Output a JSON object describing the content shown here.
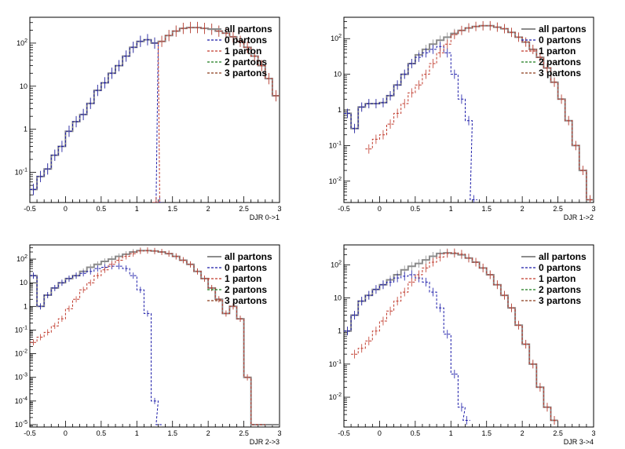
{
  "colors": {
    "all": "#8c8c8c",
    "p0": "#1a1aa8",
    "p1": "#c0392b",
    "p2": "#1a7a1a",
    "p3": "#8b3a1a"
  },
  "legend": [
    {
      "key": "all",
      "label": "all partons",
      "dashed": false
    },
    {
      "key": "p0",
      "label": "0 partons",
      "dashed": true
    },
    {
      "key": "p1",
      "label": "1 parton",
      "dashed": true
    },
    {
      "key": "p2",
      "label": "2 partons",
      "dashed": true
    },
    {
      "key": "p3",
      "label": "3 partons",
      "dashed": true
    }
  ],
  "chart_data": [
    {
      "type": "line",
      "xlabel": "DJR 0->1",
      "xlim": [
        -0.5,
        3.0
      ],
      "ylim_log10": [
        -1.7,
        2.6
      ],
      "yscale": "log",
      "xticks": [
        "-0.5",
        "0",
        "0.5",
        "1",
        "1.5",
        "2",
        "2.5",
        "3"
      ],
      "yticks": [
        {
          "exp": -1,
          "label": "10^-1"
        },
        {
          "exp": 0,
          "label": "1"
        },
        {
          "exp": 1,
          "label": "10"
        },
        {
          "exp": 2,
          "label": "10^2"
        }
      ],
      "series": [
        {
          "name": "all partons",
          "key": "all",
          "x": [
            -0.45,
            -0.35,
            -0.25,
            -0.15,
            -0.05,
            0.05,
            0.15,
            0.25,
            0.35,
            0.45,
            0.55,
            0.65,
            0.75,
            0.85,
            0.95,
            1.05,
            1.15,
            1.25,
            1.35,
            1.45,
            1.55,
            1.65,
            1.75,
            1.85,
            1.95,
            2.05,
            2.15,
            2.25,
            2.35,
            2.45,
            2.55,
            2.65,
            2.75,
            2.85,
            2.95
          ],
          "y": [
            0.04,
            0.08,
            0.12,
            0.25,
            0.4,
            0.9,
            1.5,
            2.2,
            4,
            8,
            12,
            20,
            30,
            50,
            80,
            110,
            120,
            100,
            110,
            150,
            190,
            220,
            230,
            230,
            220,
            210,
            190,
            170,
            140,
            110,
            80,
            50,
            30,
            15,
            6
          ]
        },
        {
          "name": "0 partons",
          "key": "p0",
          "x": [
            -0.45,
            -0.35,
            -0.25,
            -0.15,
            -0.05,
            0.05,
            0.15,
            0.25,
            0.35,
            0.45,
            0.55,
            0.65,
            0.75,
            0.85,
            0.95,
            1.05,
            1.15,
            1.25,
            1.32
          ],
          "y": [
            0.04,
            0.08,
            0.12,
            0.25,
            0.4,
            0.9,
            1.5,
            2.2,
            4,
            8,
            12,
            20,
            30,
            50,
            80,
            110,
            120,
            100,
            0.02
          ]
        },
        {
          "name": "1 parton",
          "key": "p1",
          "x": [
            1.27,
            1.35,
            1.45,
            1.55,
            1.65,
            1.75,
            1.85,
            1.95,
            2.05,
            2.15,
            2.25,
            2.35,
            2.45,
            2.55,
            2.65,
            2.75,
            2.85,
            2.95
          ],
          "y": [
            0.02,
            110,
            150,
            190,
            220,
            230,
            230,
            220,
            210,
            190,
            170,
            140,
            110,
            80,
            50,
            30,
            15,
            6
          ]
        }
      ]
    },
    {
      "type": "line",
      "xlabel": "DJR 1->2",
      "xlim": [
        -0.5,
        3.0
      ],
      "ylim_log10": [
        -2.6,
        2.6
      ],
      "yscale": "log",
      "xticks": [
        "-0.5",
        "0",
        "0.5",
        "1",
        "1.5",
        "2",
        "2.5",
        "3"
      ],
      "yticks": [
        {
          "exp": -2,
          "label": "10^-2"
        },
        {
          "exp": -1,
          "label": "10^-1"
        },
        {
          "exp": 0,
          "label": "1"
        },
        {
          "exp": 1,
          "label": "10"
        },
        {
          "exp": 2,
          "label": "10^2"
        }
      ],
      "series": [
        {
          "name": "all partons",
          "key": "all",
          "x": [
            -0.45,
            -0.35,
            -0.25,
            -0.15,
            -0.05,
            0.05,
            0.15,
            0.25,
            0.35,
            0.45,
            0.55,
            0.65,
            0.75,
            0.85,
            0.95,
            1.05,
            1.15,
            1.25,
            1.35,
            1.45,
            1.55,
            1.65,
            1.75,
            1.85,
            1.95,
            2.05,
            2.15,
            2.25,
            2.35,
            2.45,
            2.55,
            2.65,
            2.75,
            2.85,
            2.95
          ],
          "y": [
            0.8,
            0.3,
            1.2,
            1.5,
            1.5,
            1.6,
            2.5,
            5,
            10,
            20,
            35,
            50,
            70,
            90,
            110,
            140,
            170,
            200,
            220,
            230,
            230,
            210,
            190,
            150,
            110,
            80,
            50,
            30,
            15,
            6,
            2,
            0.5,
            0.1,
            0.02,
            0.003
          ]
        },
        {
          "name": "0 partons",
          "key": "p0",
          "x": [
            -0.45,
            -0.35,
            -0.25,
            -0.15,
            -0.05,
            0.05,
            0.15,
            0.25,
            0.35,
            0.45,
            0.55,
            0.65,
            0.75,
            0.85,
            0.95,
            1.05,
            1.15,
            1.25,
            1.32
          ],
          "y": [
            0.8,
            0.3,
            1.2,
            1.5,
            1.5,
            1.6,
            2.5,
            5,
            10,
            20,
            30,
            40,
            50,
            60,
            40,
            10,
            2,
            0.5,
            0.003
          ]
        },
        {
          "name": "1 parton",
          "key": "p1",
          "x": [
            -0.15,
            -0.05,
            0.05,
            0.15,
            0.25,
            0.35,
            0.45,
            0.55,
            0.65,
            0.75,
            0.85,
            0.95,
            1.05,
            1.15,
            1.25,
            1.35,
            1.45,
            1.55,
            1.65,
            1.75,
            1.85,
            1.95,
            2.05,
            2.15,
            2.25,
            2.35,
            2.45,
            2.55,
            2.65,
            2.75,
            2.85,
            2.95
          ],
          "y": [
            0.08,
            0.15,
            0.2,
            0.4,
            0.8,
            1.5,
            3,
            5,
            10,
            20,
            40,
            70,
            130,
            170,
            200,
            220,
            230,
            230,
            210,
            190,
            150,
            110,
            80,
            50,
            30,
            15,
            6,
            2,
            0.5,
            0.1,
            0.02,
            0.003
          ]
        }
      ]
    },
    {
      "type": "line",
      "xlabel": "DJR 2->3",
      "xlim": [
        -0.5,
        3.0
      ],
      "ylim_log10": [
        -5.1,
        2.6
      ],
      "yscale": "log",
      "xticks": [
        "-0.5",
        "0",
        "0.5",
        "1",
        "1.5",
        "2",
        "2.5",
        "3"
      ],
      "yticks": [
        {
          "exp": -5,
          "label": "10^-5"
        },
        {
          "exp": -4,
          "label": "10^-4"
        },
        {
          "exp": -3,
          "label": "10^-3"
        },
        {
          "exp": -2,
          "label": "10^-2"
        },
        {
          "exp": -1,
          "label": "10^-1"
        },
        {
          "exp": 0,
          "label": "1"
        },
        {
          "exp": 1,
          "label": "10"
        },
        {
          "exp": 2,
          "label": "10^2"
        }
      ],
      "series": [
        {
          "name": "all partons",
          "key": "all",
          "x": [
            -0.45,
            -0.35,
            -0.25,
            -0.15,
            -0.05,
            0.05,
            0.15,
            0.25,
            0.35,
            0.45,
            0.55,
            0.65,
            0.75,
            0.85,
            0.95,
            1.05,
            1.15,
            1.25,
            1.35,
            1.45,
            1.55,
            1.65,
            1.75,
            1.85,
            1.95,
            2.05,
            2.15,
            2.25,
            2.35,
            2.45,
            2.55,
            2.65,
            2.75,
            2.85,
            2.95
          ],
          "y": [
            20,
            1,
            3,
            6,
            10,
            15,
            20,
            30,
            45,
            60,
            80,
            100,
            130,
            160,
            200,
            230,
            230,
            220,
            200,
            170,
            130,
            90,
            60,
            30,
            15,
            6,
            2,
            0.5,
            1,
            0.3,
            0.001,
            1e-05,
            1e-05,
            1e-05,
            1e-05
          ]
        },
        {
          "name": "0 partons",
          "key": "p0",
          "x": [
            -0.45,
            -0.35,
            -0.25,
            -0.15,
            -0.05,
            0.05,
            0.15,
            0.25,
            0.35,
            0.45,
            0.55,
            0.65,
            0.75,
            0.85,
            0.95,
            1.05,
            1.15,
            1.25,
            1.32
          ],
          "y": [
            20,
            1,
            3,
            6,
            10,
            15,
            20,
            25,
            30,
            40,
            45,
            50,
            50,
            40,
            20,
            5,
            0.5,
            0.0001,
            1e-05
          ]
        },
        {
          "name": "1 parton",
          "key": "p1",
          "x": [
            -0.45,
            -0.35,
            -0.25,
            -0.15,
            -0.05,
            0.05,
            0.15,
            0.25,
            0.35,
            0.45,
            0.55,
            0.65,
            0.75,
            0.85,
            0.95,
            1.05,
            1.15,
            1.25,
            1.35,
            1.45,
            1.55,
            1.65,
            1.75,
            1.85,
            1.95,
            2.05,
            2.15,
            2.25,
            2.35,
            2.45,
            2.55,
            2.65,
            2.75
          ],
          "y": [
            0.03,
            0.05,
            0.08,
            0.15,
            0.3,
            0.8,
            2,
            5,
            10,
            20,
            35,
            60,
            90,
            130,
            170,
            220,
            230,
            220,
            200,
            170,
            130,
            90,
            60,
            30,
            15,
            6,
            2,
            0.5,
            1,
            0.3,
            0.001,
            1e-05,
            1e-05
          ]
        }
      ]
    },
    {
      "type": "line",
      "xlabel": "DJR 3->4",
      "xlim": [
        -0.5,
        3.0
      ],
      "ylim_log10": [
        -2.9,
        2.6
      ],
      "yscale": "log",
      "xticks": [
        "-0.5",
        "0",
        "0.5",
        "1",
        "1.5",
        "2",
        "2.5",
        "3"
      ],
      "yticks": [
        {
          "exp": -2,
          "label": "10^-2"
        },
        {
          "exp": -1,
          "label": "10^-1"
        },
        {
          "exp": 0,
          "label": "1"
        },
        {
          "exp": 1,
          "label": "10"
        },
        {
          "exp": 2,
          "label": "10^2"
        }
      ],
      "series": [
        {
          "name": "all partons",
          "key": "all",
          "x": [
            -0.45,
            -0.35,
            -0.25,
            -0.15,
            -0.05,
            0.05,
            0.15,
            0.25,
            0.35,
            0.45,
            0.55,
            0.65,
            0.75,
            0.85,
            0.95,
            1.05,
            1.15,
            1.25,
            1.35,
            1.45,
            1.55,
            1.65,
            1.75,
            1.85,
            1.95,
            2.05,
            2.15,
            2.25,
            2.35,
            2.45
          ],
          "y": [
            1,
            3,
            8,
            12,
            18,
            25,
            35,
            50,
            70,
            90,
            110,
            140,
            180,
            220,
            230,
            220,
            200,
            160,
            120,
            80,
            50,
            25,
            12,
            5,
            1.5,
            0.4,
            0.1,
            0.02,
            0.005,
            0.002
          ]
        },
        {
          "name": "0 partons",
          "key": "p0",
          "x": [
            -0.45,
            -0.35,
            -0.25,
            -0.15,
            -0.05,
            0.05,
            0.15,
            0.25,
            0.35,
            0.45,
            0.55,
            0.65,
            0.75,
            0.85,
            0.95,
            1.05,
            1.15,
            1.22
          ],
          "y": [
            1,
            3,
            8,
            12,
            18,
            25,
            30,
            40,
            45,
            50,
            40,
            30,
            15,
            5,
            0.8,
            0.05,
            0.005,
            0.002
          ]
        },
        {
          "name": "1 parton",
          "key": "p1",
          "x": [
            -0.35,
            -0.25,
            -0.15,
            -0.05,
            0.05,
            0.15,
            0.25,
            0.35,
            0.45,
            0.55,
            0.65,
            0.75,
            0.85,
            0.95,
            1.05,
            1.15,
            1.25,
            1.35,
            1.45,
            1.55,
            1.65,
            1.75,
            1.85,
            1.95,
            2.05,
            2.15,
            2.25,
            2.35,
            2.45
          ],
          "y": [
            0.2,
            0.3,
            0.5,
            1,
            2,
            4,
            8,
            15,
            30,
            50,
            80,
            120,
            170,
            220,
            230,
            210,
            160,
            120,
            80,
            50,
            25,
            12,
            5,
            1.5,
            0.4,
            0.1,
            0.02,
            0.005,
            0.002
          ]
        }
      ]
    }
  ]
}
